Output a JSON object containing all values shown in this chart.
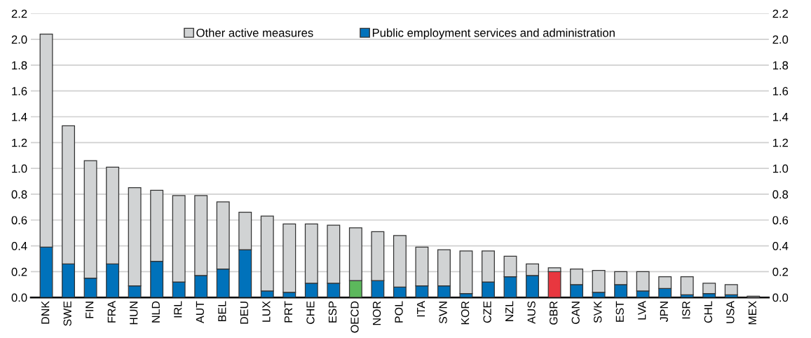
{
  "chart_data": {
    "type": "bar",
    "stacked": true,
    "categories": [
      "DNK",
      "SWE",
      "FIN",
      "FRA",
      "HUN",
      "NLD",
      "IRL",
      "AUT",
      "BEL",
      "DEU",
      "LUX",
      "PRT",
      "CHE",
      "ESP",
      "OECD",
      "NOR",
      "POL",
      "ITA",
      "SVN",
      "KOR",
      "CZE",
      "NZL",
      "AUS",
      "GBR",
      "CAN",
      "SVK",
      "EST",
      "LVA",
      "JPN",
      "ISR",
      "CHL",
      "USA",
      "MEX"
    ],
    "series": [
      {
        "name": "Public employment services and administration",
        "color": "#0072bb",
        "colors": [
          "#0072bb",
          "#0072bb",
          "#0072bb",
          "#0072bb",
          "#0072bb",
          "#0072bb",
          "#0072bb",
          "#0072bb",
          "#0072bb",
          "#0072bb",
          "#0072bb",
          "#0072bb",
          "#0072bb",
          "#0072bb",
          "#5cb85c",
          "#0072bb",
          "#0072bb",
          "#0072bb",
          "#0072bb",
          "#0072bb",
          "#0072bb",
          "#0072bb",
          "#0072bb",
          "#e8373f",
          "#0072bb",
          "#0072bb",
          "#0072bb",
          "#0072bb",
          "#0072bb",
          "#0072bb",
          "#0072bb",
          "#0072bb",
          "#0072bb"
        ],
        "values": [
          0.39,
          0.26,
          0.15,
          0.26,
          0.09,
          0.28,
          0.12,
          0.17,
          0.22,
          0.37,
          0.05,
          0.04,
          0.11,
          0.11,
          0.13,
          0.13,
          0.08,
          0.09,
          0.09,
          0.03,
          0.12,
          0.16,
          0.17,
          0.2,
          0.1,
          0.04,
          0.1,
          0.05,
          0.07,
          0.02,
          0.03,
          0.02,
          0.0
        ]
      },
      {
        "name": "Other active measures",
        "color": "#d1d3d4",
        "values": [
          1.65,
          1.07,
          0.91,
          0.75,
          0.76,
          0.55,
          0.67,
          0.62,
          0.52,
          0.29,
          0.58,
          0.53,
          0.46,
          0.45,
          0.41,
          0.38,
          0.4,
          0.3,
          0.28,
          0.33,
          0.24,
          0.16,
          0.09,
          0.03,
          0.12,
          0.17,
          0.1,
          0.15,
          0.09,
          0.14,
          0.08,
          0.08,
          0.01
        ]
      }
    ],
    "ylim": [
      0,
      2.2
    ],
    "yticks": [
      {
        "value": 0,
        "label": "0.0"
      },
      {
        "value": 0.2,
        "label": "0.2"
      },
      {
        "value": 0.4,
        "label": "0.4"
      },
      {
        "value": 0.6,
        "label": "0.6"
      },
      {
        "value": 0.8,
        "label": "0.8"
      },
      {
        "value": 1.0,
        "label": "1.0"
      },
      {
        "value": 1.2,
        "label": "1.2"
      },
      {
        "value": 1.4,
        "label": "1.4"
      },
      {
        "value": 1.6,
        "label": "1.6"
      },
      {
        "value": 1.8,
        "label": "1.8"
      },
      {
        "value": 2.0,
        "label": "2.0"
      },
      {
        "value": 2.2,
        "label": "2.2"
      }
    ],
    "y2lim": [
      0,
      2.2
    ],
    "y2ticks": [
      {
        "value": 0,
        "label": "0.0"
      },
      {
        "value": 0.2,
        "label": "0.2"
      },
      {
        "value": 0.4,
        "label": "0.4"
      },
      {
        "value": 0.6,
        "label": "0.6"
      },
      {
        "value": 0.8,
        "label": "0.8"
      },
      {
        "value": 1.0,
        "label": "1.0"
      },
      {
        "value": 1.2,
        "label": "1.2"
      },
      {
        "value": 1.4,
        "label": "1.4"
      },
      {
        "value": 1.6,
        "label": "1.6"
      },
      {
        "value": 1.8,
        "label": "1.8"
      },
      {
        "value": 2.0,
        "label": "2.0"
      },
      {
        "value": 2.2,
        "label": "2.2"
      }
    ],
    "grid": "y",
    "legend": "top"
  }
}
